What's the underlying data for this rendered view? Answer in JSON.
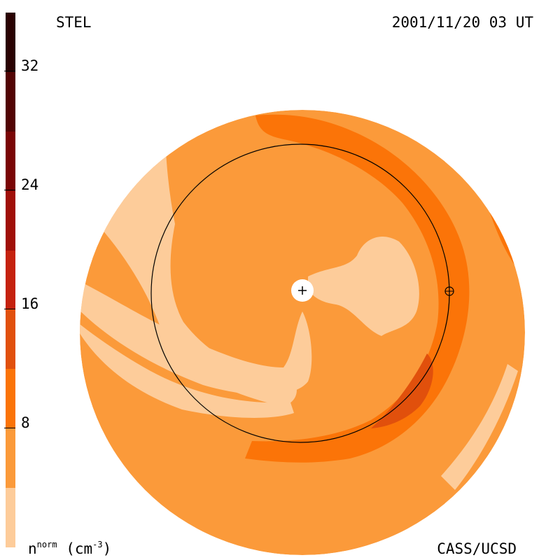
{
  "header": {
    "source": "STEL",
    "datetime": "2001/11/20 03 UT"
  },
  "footer": {
    "credit": "CASS/UCSD"
  },
  "colorbar": {
    "unit_base": "n",
    "unit_sup": "norm",
    "unit_rest": "(cm",
    "unit_exp": "-3",
    "unit_close": ")",
    "range": [
      0,
      36
    ],
    "ticks": [
      {
        "value": 32,
        "label": "32"
      },
      {
        "value": 24,
        "label": "24"
      },
      {
        "value": 16,
        "label": "16"
      },
      {
        "value": 8,
        "label": "8"
      }
    ],
    "levels": [
      {
        "from": 0,
        "to": 4,
        "color": "#fdcc9a"
      },
      {
        "from": 4,
        "to": 8,
        "color": "#fb9a3a"
      },
      {
        "from": 8,
        "to": 12,
        "color": "#fb7408"
      },
      {
        "from": 12,
        "to": 16,
        "color": "#e1500c"
      },
      {
        "from": 16,
        "to": 20,
        "color": "#c5220e"
      },
      {
        "from": 20,
        "to": 24,
        "color": "#a00f08"
      },
      {
        "from": 24,
        "to": 28,
        "color": "#7a0505"
      },
      {
        "from": 28,
        "to": 32,
        "color": "#520404"
      },
      {
        "from": 32,
        "to": 36,
        "color": "#2a0202"
      }
    ]
  }
}
